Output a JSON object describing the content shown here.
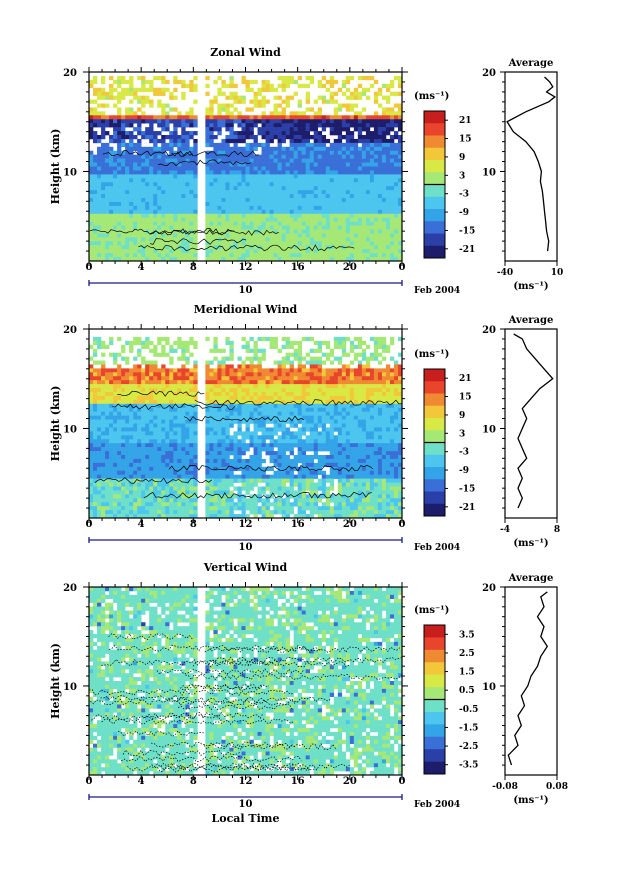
{
  "panels": [
    {
      "title": "Zonal Wind",
      "ylabel": "Height (km)",
      "unit": "(ms⁻¹)",
      "cbar_labels": [
        "21",
        "15",
        "9",
        "3",
        "-3",
        "-9",
        "-15",
        "-21"
      ],
      "profile_title": "Average",
      "profile_xticks": [
        "-40",
        "10"
      ],
      "profile_xlim": [
        -40,
        10
      ],
      "profile_unit": "(ms⁻¹)"
    },
    {
      "title": "Meridional Wind",
      "ylabel": "Height (km)",
      "unit": "(ms⁻¹)",
      "cbar_labels": [
        "21",
        "15",
        "9",
        "3",
        "-3",
        "-9",
        "-15",
        "-21"
      ],
      "profile_title": "Average",
      "profile_xticks": [
        "-4",
        "8"
      ],
      "profile_xlim": [
        -4,
        8
      ],
      "profile_unit": "(ms⁻¹)"
    },
    {
      "title": "Vertical Wind",
      "ylabel": "Height (km)",
      "unit": "(ms⁻¹)",
      "cbar_labels": [
        "3.5",
        "2.5",
        "1.5",
        "0.5",
        "-0.5",
        "-1.5",
        "-2.5",
        "-3.5"
      ],
      "profile_title": "Average",
      "profile_xticks": [
        "-0.08",
        "0.08"
      ],
      "profile_xlim": [
        -0.08,
        0.08
      ],
      "profile_unit": "(ms⁻¹)"
    }
  ],
  "xticks": [
    "0",
    "4",
    "8",
    "12",
    "16",
    "20",
    "0"
  ],
  "date_day": "10",
  "date_label": "Feb 2004",
  "yticks": [
    "20",
    "10"
  ],
  "xlabel": "Local Time",
  "colors": {
    "scale": [
      "#1d1d6b",
      "#2b3fa8",
      "#3a6fd8",
      "#34a4e8",
      "#4cc6ee",
      "#6fe0c8",
      "#a6e876",
      "#d8e845",
      "#f2c83a",
      "#f08a32",
      "#e8452c",
      "#c81e1e"
    ],
    "date_axis": "#1a1a8c"
  },
  "chart_data": [
    {
      "type": "heatmap",
      "title": "Zonal Wind",
      "xlabel": "",
      "ylabel": "Height (km)",
      "x_range_hours": [
        0,
        24
      ],
      "ylim": [
        1,
        20
      ],
      "colorbar_range": [
        -24,
        24
      ],
      "profile": {
        "title": "Average",
        "xlim": [
          -40,
          10
        ],
        "height_km": [
          2,
          3,
          4,
          5,
          6,
          7,
          8,
          9,
          10,
          11,
          12,
          13,
          14,
          15,
          16,
          17,
          17.5,
          18,
          18.5,
          19,
          19.5
        ],
        "values": [
          1,
          2,
          0,
          -1,
          -2,
          -3,
          -4,
          -6,
          -5,
          -8,
          -12,
          -20,
          -32,
          -38,
          -20,
          2,
          8,
          0,
          6,
          3,
          -2
        ]
      }
    },
    {
      "type": "heatmap",
      "title": "Meridional Wind",
      "xlabel": "",
      "ylabel": "Height (km)",
      "x_range_hours": [
        0,
        24
      ],
      "ylim": [
        1,
        20
      ],
      "colorbar_range": [
        -24,
        24
      ],
      "profile": {
        "title": "Average",
        "xlim": [
          -4,
          8
        ],
        "height_km": [
          2,
          3,
          4,
          5,
          6,
          7,
          8,
          9,
          10,
          11,
          12,
          13,
          14,
          15,
          16,
          17,
          18,
          19,
          19.5
        ],
        "values": [
          -1,
          0,
          -1,
          0,
          -1,
          1,
          0,
          -1,
          0,
          1,
          0,
          2,
          4,
          7,
          5,
          3,
          1,
          0,
          -2
        ]
      }
    },
    {
      "type": "heatmap",
      "title": "Vertical Wind",
      "xlabel": "Local Time",
      "ylabel": "Height (km)",
      "x_range_hours": [
        0,
        24
      ],
      "ylim": [
        1,
        20
      ],
      "colorbar_range": [
        -4,
        4
      ],
      "profile": {
        "title": "Average",
        "xlim": [
          -0.08,
          0.08
        ],
        "height_km": [
          2,
          3,
          4,
          5,
          6,
          7,
          8,
          9,
          10,
          11,
          12,
          13,
          14,
          15,
          16,
          17,
          18,
          19,
          19.5
        ],
        "values": [
          -0.06,
          -0.07,
          -0.04,
          -0.05,
          -0.03,
          -0.04,
          -0.02,
          -0.03,
          -0.01,
          0.0,
          0.02,
          0.03,
          0.05,
          0.03,
          0.04,
          0.02,
          0.04,
          0.03,
          0.05
        ]
      }
    }
  ]
}
